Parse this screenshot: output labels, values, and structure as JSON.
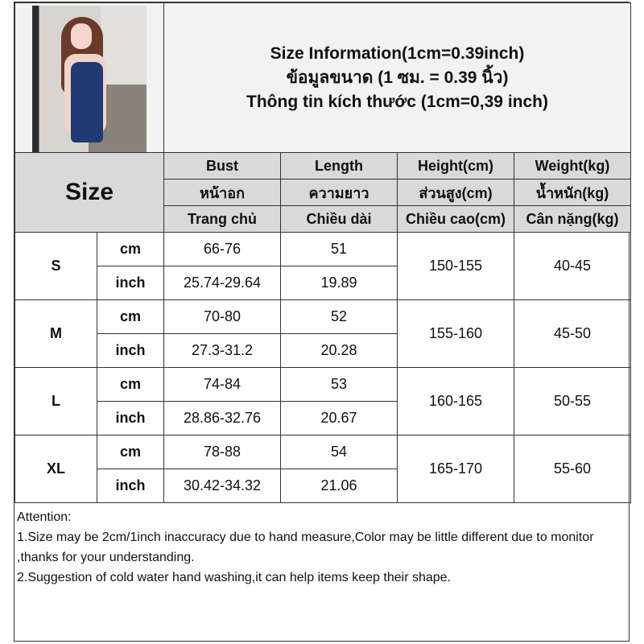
{
  "title_lines": [
    "Size Information(1cm=0.39inch)",
    "ข้อมูลขนาด (1 ซม. = 0.39 นิ้ว)",
    "Thông tin kích thước (1cm=0,39 inch)"
  ],
  "size_header": "Size",
  "columns": [
    [
      "Bust",
      "หน้าอก",
      "Trang chủ"
    ],
    [
      "Length",
      "ความยาว",
      "Chiều dài"
    ],
    [
      "Height(cm)",
      "ส่วนสูง(cm)",
      "Chiều cao(cm)"
    ],
    [
      "Weight(kg)",
      "น้ำหนัก(kg)",
      "Cân nặng(kg)"
    ]
  ],
  "rows": [
    {
      "size": "S",
      "cm": {
        "unit": "cm",
        "bust": "66-76",
        "length": "51"
      },
      "inch": {
        "unit": "inch",
        "bust": "25.74-29.64",
        "length": "19.89"
      },
      "height": "150-155",
      "weight": "40-45"
    },
    {
      "size": "M",
      "cm": {
        "unit": "cm",
        "bust": "70-80",
        "length": "52"
      },
      "inch": {
        "unit": "inch",
        "bust": "27.3-31.2",
        "length": "20.28"
      },
      "height": "155-160",
      "weight": "45-50"
    },
    {
      "size": "L",
      "cm": {
        "unit": "cm",
        "bust": "74-84",
        "length": "53"
      },
      "inch": {
        "unit": "inch",
        "bust": "28.86-32.76",
        "length": "20.67"
      },
      "height": "160-165",
      "weight": "50-55"
    },
    {
      "size": "XL",
      "cm": {
        "unit": "cm",
        "bust": "78-88",
        "length": "54"
      },
      "inch": {
        "unit": "inch",
        "bust": "30.42-34.32",
        "length": "21.06"
      },
      "height": "165-170",
      "weight": "55-60"
    }
  ],
  "attention": "Attention:\n1.Size may be 2cm/1inch inaccuracy due to hand measure,Color may be little different due to monitor ,thanks for your understanding.\n2.Suggestion of cold water hand washing,it can help items keep their shape.",
  "colors": {
    "header_bg": "#d9d9d9",
    "title_bg": "#f2f2f2",
    "dress": "#1f3a74"
  }
}
